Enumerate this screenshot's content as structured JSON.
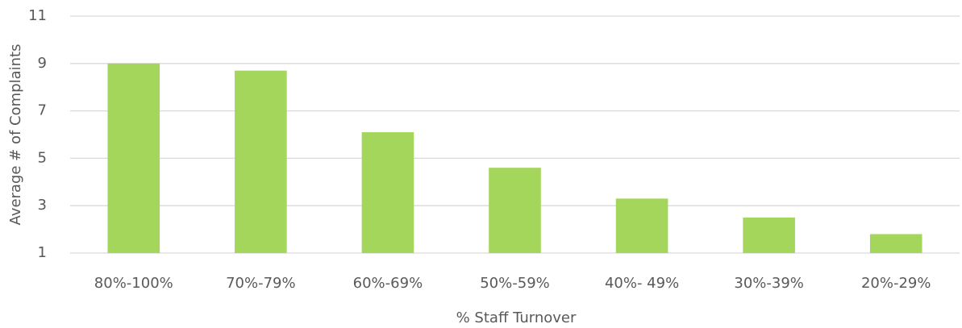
{
  "chart_data": {
    "type": "bar",
    "x_label": "% Staff Turnover",
    "y_label": "Average # of Complaints",
    "categories": [
      "80%-100%",
      "70%-79%",
      "60%-69%",
      "50%-59%",
      "40%- 49%",
      "30%-39%",
      "20%-29%"
    ],
    "values": [
      9.0,
      8.7,
      6.1,
      4.6,
      3.3,
      2.5,
      1.8
    ],
    "color": "#a5d65c",
    "ylim": [
      1,
      11
    ],
    "yticks": [
      1,
      3,
      5,
      7,
      9,
      11
    ],
    "grid": true
  }
}
